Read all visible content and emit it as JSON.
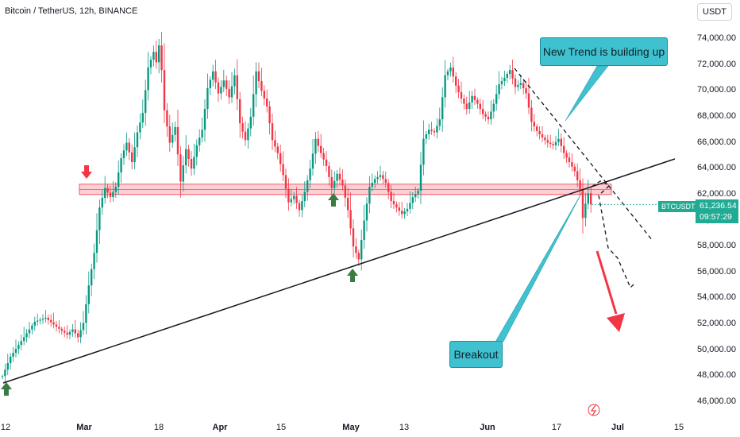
{
  "header": {
    "title": "Bitcoin / TetherUS, 12h, BINANCE",
    "currency": "USDT"
  },
  "price_badge": {
    "ticker": "BTCUSDT",
    "price": "61,236.54",
    "countdown": "09:57:29"
  },
  "annotations": {
    "new_trend": "New Trend is building up",
    "breakout": "Breakout"
  },
  "colors": {
    "up": "#089981",
    "down": "#f23645",
    "zone": "#f7a8b0",
    "callout": "#3fc1d0",
    "badge": "#22ab94",
    "arrow_up": "#3a7d44",
    "arrow_down": "#f23645"
  },
  "chart_data": {
    "type": "candlestick",
    "title": "Bitcoin / TetherUS, 12h, BINANCE",
    "y_ticks": [
      "74,000.00",
      "72,000.00",
      "70,000.00",
      "68,000.00",
      "66,000.00",
      "64,000.00",
      "62,000.00",
      "60,000.00",
      "58,000.00",
      "56,000.00",
      "54,000.00",
      "52,000.00",
      "50,000.00",
      "48,000.00",
      "46,000.00"
    ],
    "x_ticks": [
      {
        "label": "12",
        "bold": false
      },
      {
        "label": "Mar",
        "bold": true
      },
      {
        "label": "18",
        "bold": false
      },
      {
        "label": "Apr",
        "bold": true
      },
      {
        "label": "15",
        "bold": false
      },
      {
        "label": "May",
        "bold": true
      },
      {
        "label": "13",
        "bold": false
      },
      {
        "label": "Jun",
        "bold": true
      },
      {
        "label": "17",
        "bold": false
      },
      {
        "label": "Jul",
        "bold": true
      },
      {
        "label": "15",
        "bold": false
      }
    ],
    "ylim": [
      45000,
      75500
    ],
    "path_points": [
      [
        0,
        48000
      ],
      [
        3,
        49500
      ],
      [
        8,
        51000
      ],
      [
        12,
        52200
      ],
      [
        16,
        52500
      ],
      [
        20,
        51800
      ],
      [
        24,
        51200
      ],
      [
        26,
        51600
      ],
      [
        28,
        51000
      ],
      [
        30,
        52100
      ],
      [
        32,
        55000
      ],
      [
        34,
        57500
      ],
      [
        36,
        61000
      ],
      [
        38,
        62500
      ],
      [
        40,
        61800
      ],
      [
        42,
        62600
      ],
      [
        44,
        64800
      ],
      [
        46,
        66000
      ],
      [
        48,
        64500
      ],
      [
        50,
        66800
      ],
      [
        52,
        68300
      ],
      [
        54,
        71800
      ],
      [
        56,
        73000
      ],
      [
        57,
        72200
      ],
      [
        58,
        73500
      ],
      [
        59,
        71600
      ],
      [
        60,
        68500
      ],
      [
        62,
        66000
      ],
      [
        64,
        67200
      ],
      [
        66,
        63000
      ],
      [
        68,
        65500
      ],
      [
        70,
        64000
      ],
      [
        72,
        65800
      ],
      [
        74,
        67000
      ],
      [
        76,
        70200
      ],
      [
        78,
        71500
      ],
      [
        80,
        69800
      ],
      [
        82,
        70800
      ],
      [
        84,
        69500
      ],
      [
        86,
        71200
      ],
      [
        88,
        67500
      ],
      [
        90,
        66200
      ],
      [
        92,
        68000
      ],
      [
        94,
        71500
      ],
      [
        96,
        70000
      ],
      [
        98,
        68800
      ],
      [
        100,
        66200
      ],
      [
        102,
        65200
      ],
      [
        104,
        63500
      ],
      [
        106,
        61400
      ],
      [
        108,
        61900
      ],
      [
        110,
        60800
      ],
      [
        112,
        62200
      ],
      [
        114,
        64000
      ],
      [
        116,
        66300
      ],
      [
        118,
        65200
      ],
      [
        120,
        64200
      ],
      [
        122,
        62500
      ],
      [
        124,
        63600
      ],
      [
        126,
        62700
      ],
      [
        128,
        60800
      ],
      [
        130,
        58000
      ],
      [
        132,
        57000
      ],
      [
        134,
        60000
      ],
      [
        136,
        62600
      ],
      [
        138,
        63200
      ],
      [
        140,
        63500
      ],
      [
        142,
        62900
      ],
      [
        144,
        61500
      ],
      [
        146,
        61000
      ],
      [
        148,
        60500
      ],
      [
        150,
        60900
      ],
      [
        152,
        61800
      ],
      [
        154,
        62300
      ],
      [
        156,
        66300
      ],
      [
        158,
        67000
      ],
      [
        160,
        66800
      ],
      [
        162,
        67800
      ],
      [
        164,
        71200
      ],
      [
        166,
        71800
      ],
      [
        168,
        70400
      ],
      [
        170,
        69400
      ],
      [
        172,
        68600
      ],
      [
        174,
        69600
      ],
      [
        176,
        69000
      ],
      [
        178,
        68200
      ],
      [
        180,
        67800
      ],
      [
        182,
        69000
      ],
      [
        184,
        70500
      ],
      [
        186,
        71000
      ],
      [
        188,
        71600
      ],
      [
        190,
        70300
      ],
      [
        192,
        70600
      ],
      [
        194,
        69800
      ],
      [
        196,
        67600
      ],
      [
        198,
        66900
      ],
      [
        200,
        66400
      ],
      [
        202,
        66000
      ],
      [
        204,
        65800
      ],
      [
        206,
        66300
      ],
      [
        208,
        65200
      ],
      [
        210,
        64500
      ],
      [
        212,
        63800
      ],
      [
        214,
        62400
      ],
      [
        215,
        60200
      ],
      [
        216,
        61300
      ],
      [
        217,
        62100
      ],
      [
        218,
        61236
      ]
    ]
  }
}
